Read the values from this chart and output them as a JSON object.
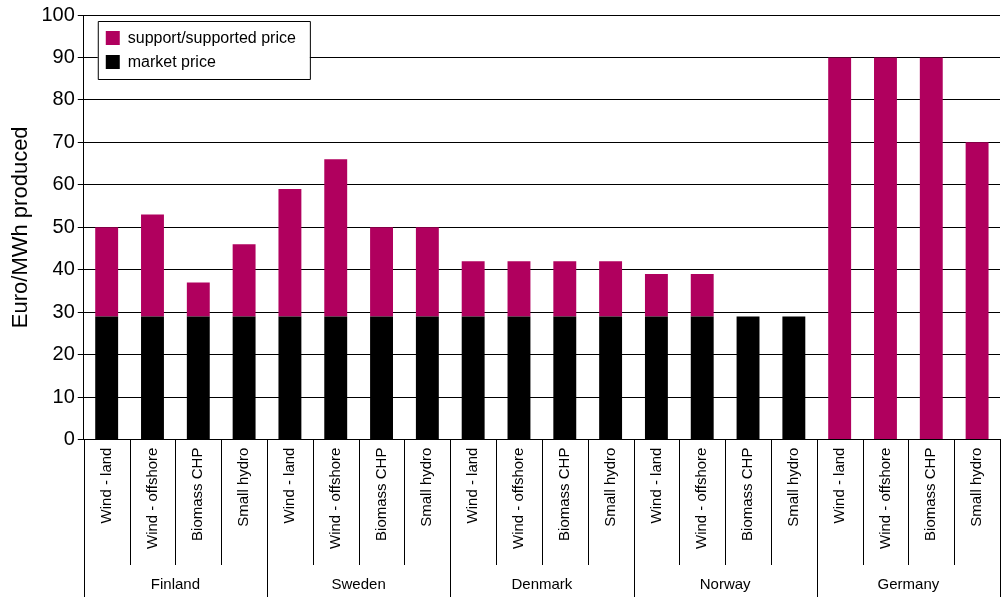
{
  "chart_data": {
    "type": "bar",
    "stacked": true,
    "ylabel": "Euro/MWh produced",
    "categories": [
      "Wind - land",
      "Wind - offshore",
      "Biomass CHP",
      "Small hydro",
      "Wind - land",
      "Wind - offshore",
      "Biomass CHP",
      "Small hydro",
      "Wind - land",
      "Wind - offshore",
      "Biomass CHP",
      "Small hydro",
      "Wind - land",
      "Wind - offshore",
      "Biomass CHP",
      "Small hydro",
      "Wind - land",
      "Wind - offshore",
      "Biomass CHP",
      "Small hydro"
    ],
    "series": [
      {
        "name": "market price",
        "color": "#000000",
        "values": [
          29,
          29,
          29,
          29,
          29,
          29,
          29,
          29,
          29,
          29,
          29,
          29,
          29,
          29,
          29,
          29,
          0,
          0,
          0,
          0
        ]
      },
      {
        "name": "support/supported price",
        "color": "#b0005e",
        "values": [
          21,
          24,
          8,
          17,
          30,
          37,
          21,
          21,
          13,
          13,
          13,
          13,
          10,
          10,
          0,
          0,
          90,
          90,
          90,
          70
        ]
      }
    ],
    "annotations": [
      "Finland",
      "Sweden",
      "Denmark",
      "Norway",
      "Germany"
    ],
    "ylim": [
      0,
      100
    ],
    "yticks": [
      0,
      10,
      20,
      30,
      40,
      50,
      60,
      70,
      80,
      90,
      100
    ],
    "grid": "y",
    "legend": "top left"
  }
}
